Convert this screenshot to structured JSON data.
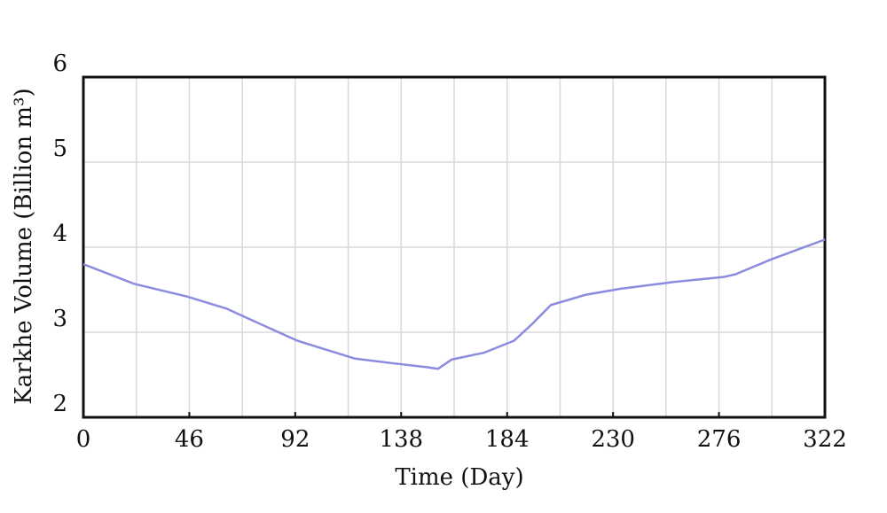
{
  "chart_data": {
    "type": "line",
    "x_label": "Time (Day)",
    "y_label": "Karkhe Volume (Billion m³)",
    "x": [
      0,
      22,
      45,
      62,
      79,
      93,
      106,
      118,
      133,
      149,
      154,
      160,
      174,
      187,
      195,
      203,
      218,
      233,
      256,
      278,
      283,
      299,
      322
    ],
    "series": [
      {
        "name": "Karkhe Volume",
        "color": "#8b8be0",
        "values": [
          3.8,
          3.57,
          3.42,
          3.28,
          3.07,
          2.9,
          2.79,
          2.69,
          2.64,
          2.59,
          2.57,
          2.68,
          2.76,
          2.9,
          3.1,
          3.32,
          3.44,
          3.51,
          3.59,
          3.65,
          3.68,
          3.86,
          4.09
        ]
      }
    ],
    "xlim": [
      0,
      322
    ],
    "xticks": [
      0,
      46,
      92,
      138,
      184,
      230,
      276,
      322
    ],
    "xgrid": [
      23,
      46,
      69,
      92,
      115,
      138,
      161,
      184,
      207,
      230,
      253,
      276,
      299
    ],
    "ylim": [
      2,
      6
    ],
    "yticks": [
      2,
      3,
      4,
      5,
      6
    ],
    "grid": true
  }
}
